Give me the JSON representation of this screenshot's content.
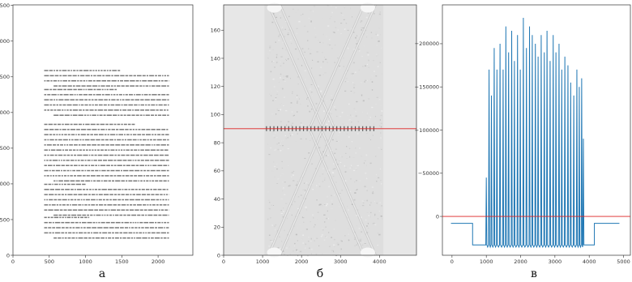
{
  "chart_data": [
    {
      "panel": "а",
      "type": "table",
      "content": "scanned document page",
      "xlim": [
        0,
        2479
      ],
      "ylim": [
        3508,
        0
      ],
      "x_ticks": [
        "0",
        "500",
        "1000",
        "1500",
        "2000"
      ],
      "y_ticks": [
        "0",
        "500",
        "1000",
        "1500",
        "2000",
        "2500",
        "3000",
        "3500"
      ],
      "grid": false
    },
    {
      "panel": "б",
      "type": "heatmap",
      "content": "greyscale transform image with red horizontal line",
      "xlim": [
        0,
        4950
      ],
      "ylim": [
        178,
        0
      ],
      "x_ticks": [
        "0",
        "1000",
        "2000",
        "3000",
        "4000"
      ],
      "y_ticks": [
        "0",
        "20",
        "40",
        "60",
        "80",
        "100",
        "120",
        "140",
        "160"
      ],
      "red_line_y": 90,
      "grid": false
    },
    {
      "panel": "в",
      "type": "line",
      "content": "profile of row 90 of panel б",
      "xlim": [
        -280,
        5200
      ],
      "ylim": [
        -245000,
        45000
      ],
      "x_ticks": [
        "0",
        "1000",
        "2000",
        "3000",
        "4000",
        "5000"
      ],
      "y_ticks": [
        "0",
        "−50000",
        "−100000",
        "−150000",
        "−200000"
      ],
      "red_line_y": 0,
      "baseline": 8000,
      "plateau": 33000,
      "dips": [
        [
          1000,
          -45000
        ],
        [
          1080,
          -170000
        ],
        [
          1150,
          -140000
        ],
        [
          1230,
          -195000
        ],
        [
          1310,
          -170000
        ],
        [
          1400,
          -200000
        ],
        [
          1490,
          -170000
        ],
        [
          1570,
          -220000
        ],
        [
          1650,
          -190000
        ],
        [
          1740,
          -215000
        ],
        [
          1820,
          -180000
        ],
        [
          1910,
          -210000
        ],
        [
          1990,
          -170000
        ],
        [
          2080,
          -230000
        ],
        [
          2170,
          -195000
        ],
        [
          2260,
          -220000
        ],
        [
          2340,
          -210000
        ],
        [
          2430,
          -200000
        ],
        [
          2510,
          -185000
        ],
        [
          2600,
          -210000
        ],
        [
          2690,
          -190000
        ],
        [
          2770,
          -215000
        ],
        [
          2860,
          -180000
        ],
        [
          2950,
          -210000
        ],
        [
          3030,
          -190000
        ],
        [
          3120,
          -200000
        ],
        [
          3200,
          -170000
        ],
        [
          3290,
          -185000
        ],
        [
          3380,
          -175000
        ],
        [
          3460,
          -155000
        ],
        [
          3550,
          -140000
        ],
        [
          3640,
          -170000
        ],
        [
          3710,
          -150000
        ],
        [
          3780,
          -160000
        ],
        [
          3830,
          -90000
        ]
      ],
      "grid": false
    }
  ],
  "captions": {
    "a": "а",
    "b": "б",
    "c": "в"
  },
  "colors": {
    "line": "#1f77b4",
    "marker_line": "#dd2222",
    "axes": "#333333"
  }
}
